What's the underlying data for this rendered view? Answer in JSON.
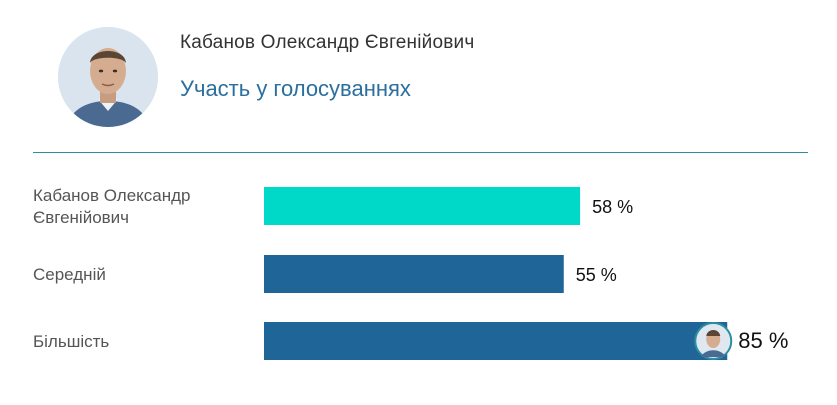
{
  "header": {
    "name": "Кабанов Олександр Євгенійович",
    "subtitle": "Участь у голосуваннях"
  },
  "colors": {
    "highlight": "#00d8c8",
    "bar": "#1f6597",
    "divider": "#2a8fa0",
    "subtitle": "#2a6f9e"
  },
  "chart_data": {
    "type": "bar",
    "orientation": "horizontal",
    "categories": [
      [
        "Кабанов Олександр",
        "Євгенійович"
      ],
      [
        "Середній"
      ],
      [
        "Більшість"
      ]
    ],
    "values": [
      58,
      55,
      85
    ],
    "value_labels": [
      "58 %",
      "55 %",
      "85 %"
    ],
    "highlight_index": 0,
    "avatar_marker_index": 2,
    "xlim": [
      0,
      100
    ],
    "title": "",
    "xlabel": "",
    "ylabel": ""
  }
}
